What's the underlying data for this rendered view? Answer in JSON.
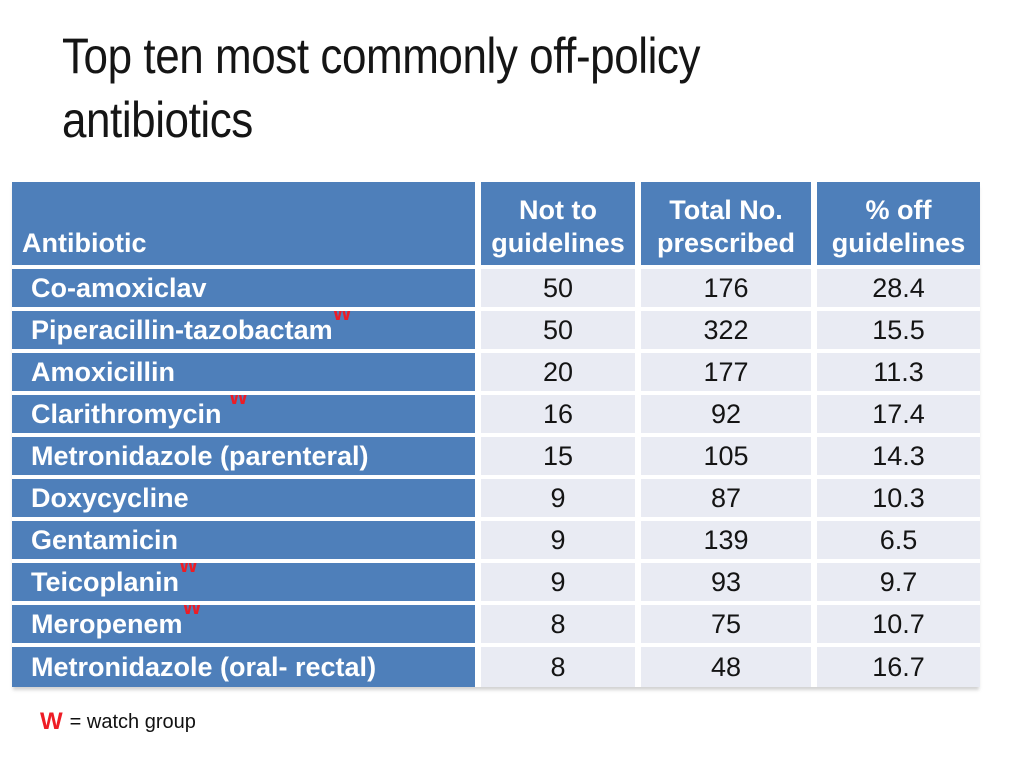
{
  "slide": {
    "title_lines": [
      "Top ten most commonly off-policy",
      "antibiotics"
    ],
    "footnote_symbol": "W",
    "footnote_text": "= watch group"
  },
  "colors": {
    "accent-blue": "#4e7fba",
    "cell-bg": "#e9ebf3",
    "watch-red": "#ee1c25",
    "text-dark": "#141414"
  },
  "table": {
    "headers": [
      "Antibiotic",
      "Not to guidelines",
      "Total No. prescribed",
      "% off guidelines"
    ],
    "rows": [
      {
        "name": "Co-amoxiclav",
        "w": "",
        "not_to_guidelines": "50",
        "total_prescribed": "176",
        "pct_off_guidelines": "28.4"
      },
      {
        "name": "Piperacillin-tazobactam",
        "w": "W",
        "not_to_guidelines": "50",
        "total_prescribed": "322",
        "pct_off_guidelines": "15.5"
      },
      {
        "name": "Amoxicillin",
        "w": "",
        "not_to_guidelines": "20",
        "total_prescribed": "177",
        "pct_off_guidelines": "11.3"
      },
      {
        "name": "Clarithromycin ",
        "w": "W",
        "not_to_guidelines": "16",
        "total_prescribed": "92",
        "pct_off_guidelines": "17.4"
      },
      {
        "name": "Metronidazole (parenteral)",
        "w": "",
        "not_to_guidelines": "15",
        "total_prescribed": "105",
        "pct_off_guidelines": "14.3"
      },
      {
        "name": "Doxycycline",
        "w": "",
        "not_to_guidelines": "9",
        "total_prescribed": "87",
        "pct_off_guidelines": "10.3"
      },
      {
        "name": "Gentamicin",
        "w": "",
        "not_to_guidelines": "9",
        "total_prescribed": "139",
        "pct_off_guidelines": "6.5"
      },
      {
        "name": "Teicoplanin",
        "w": "W",
        "not_to_guidelines": "9",
        "total_prescribed": "93",
        "pct_off_guidelines": "9.7"
      },
      {
        "name": "Meropenem",
        "w": "W",
        "not_to_guidelines": "8",
        "total_prescribed": "75",
        "pct_off_guidelines": "10.7"
      },
      {
        "name": "Metronidazole (oral- rectal)",
        "w": "",
        "not_to_guidelines": "8",
        "total_prescribed": "48",
        "pct_off_guidelines": "16.7"
      }
    ]
  }
}
